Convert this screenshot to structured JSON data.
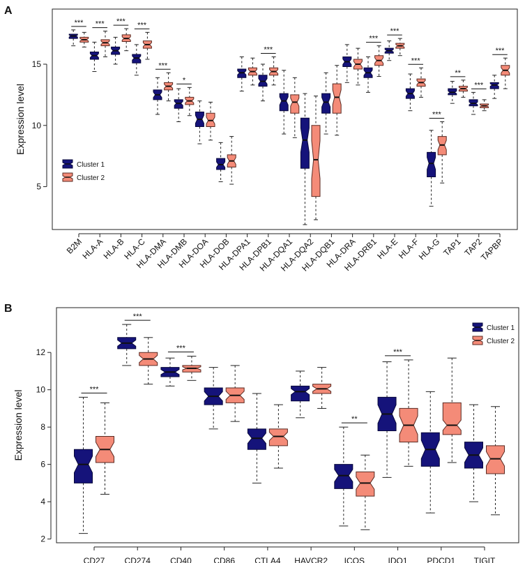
{
  "figure": {
    "panel_a_label": "A",
    "panel_b_label": "B"
  },
  "colors": {
    "cluster1_fill": "#15137a",
    "cluster1_stroke": "#08083a",
    "cluster2_fill": "#f48b78",
    "cluster2_stroke": "#5a2a22",
    "sig_line": "#111111"
  },
  "chart_data": [
    {
      "type": "boxplot",
      "panel": "A",
      "title": "",
      "ylabel": "Expression level",
      "xlabel": "",
      "ylim": [
        1.5,
        19.5
      ],
      "yticks": [
        5,
        10,
        15
      ],
      "legend": {
        "position": "left-middle",
        "entries": [
          "Cluster 1",
          "Cluster 2"
        ]
      },
      "categories": [
        "B2M",
        "HLA-A",
        "HLA-B",
        "HLA-C",
        "HLA-DMA",
        "HLA-DMB",
        "HLA-DOA",
        "HLA-DOB",
        "HLA-DPA1",
        "HLA-DPB1",
        "HLA-DQA1",
        "HLA-DQA2",
        "HLA-DQB1",
        "HLA-DRA",
        "HLA-DRB1",
        "HLA-E",
        "HLA-F",
        "HLA-G",
        "TAP1",
        "TAP2",
        "TAPBP"
      ],
      "series": [
        {
          "name": "Cluster 1",
          "boxes": [
            {
              "whisker_low": 16.5,
              "q1": 17.1,
              "median": 17.3,
              "q3": 17.45,
              "whisker_high": 17.8
            },
            {
              "whisker_low": 14.4,
              "q1": 15.4,
              "median": 15.7,
              "q3": 16.0,
              "whisker_high": 16.8
            },
            {
              "whisker_low": 15.0,
              "q1": 15.8,
              "median": 16.1,
              "q3": 16.4,
              "whisker_high": 17.2
            },
            {
              "whisker_low": 14.1,
              "q1": 15.1,
              "median": 15.5,
              "q3": 15.8,
              "whisker_high": 16.6
            },
            {
              "whisker_low": 10.9,
              "q1": 12.1,
              "median": 12.5,
              "q3": 12.9,
              "whisker_high": 13.9
            },
            {
              "whisker_low": 10.3,
              "q1": 11.4,
              "median": 11.8,
              "q3": 12.1,
              "whisker_high": 13.0
            },
            {
              "whisker_low": 8.5,
              "q1": 9.9,
              "median": 10.5,
              "q3": 11.1,
              "whisker_high": 12.0
            },
            {
              "whisker_low": 5.4,
              "q1": 6.4,
              "median": 6.8,
              "q3": 7.3,
              "whisker_high": 8.6
            },
            {
              "whisker_low": 12.8,
              "q1": 13.9,
              "median": 14.3,
              "q3": 14.6,
              "whisker_high": 15.6
            },
            {
              "whisker_low": 12.0,
              "q1": 13.2,
              "median": 13.6,
              "q3": 14.1,
              "whisker_high": 15.0
            },
            {
              "whisker_low": 9.3,
              "q1": 11.2,
              "median": 12.0,
              "q3": 12.6,
              "whisker_high": 14.5
            },
            {
              "whisker_low": 1.9,
              "q1": 6.5,
              "median": 8.8,
              "q3": 10.6,
              "whisker_high": 12.6
            },
            {
              "whisker_low": 9.3,
              "q1": 11.0,
              "median": 11.9,
              "q3": 12.6,
              "whisker_high": 14.3
            },
            {
              "whisker_low": 13.5,
              "q1": 14.8,
              "median": 15.2,
              "q3": 15.6,
              "whisker_high": 16.6
            },
            {
              "whisker_low": 12.7,
              "q1": 13.9,
              "median": 14.3,
              "q3": 14.7,
              "whisker_high": 15.6
            },
            {
              "whisker_low": 15.3,
              "q1": 15.9,
              "median": 16.1,
              "q3": 16.3,
              "whisker_high": 16.9
            },
            {
              "whisker_low": 11.2,
              "q1": 12.2,
              "median": 12.6,
              "q3": 13.0,
              "whisker_high": 14.2
            },
            {
              "whisker_low": 3.4,
              "q1": 5.8,
              "median": 6.9,
              "q3": 7.8,
              "whisker_high": 9.6
            },
            {
              "whisker_low": 11.8,
              "q1": 12.5,
              "median": 12.7,
              "q3": 13.0,
              "whisker_high": 13.6
            },
            {
              "whisker_low": 10.9,
              "q1": 11.6,
              "median": 11.8,
              "q3": 12.1,
              "whisker_high": 12.7
            },
            {
              "whisker_low": 12.2,
              "q1": 13.0,
              "median": 13.3,
              "q3": 13.5,
              "whisker_high": 14.1
            }
          ]
        },
        {
          "name": "Cluster 2",
          "boxes": [
            {
              "whisker_low": 16.4,
              "q1": 16.8,
              "median": 17.0,
              "q3": 17.2,
              "whisker_high": 17.6
            },
            {
              "whisker_low": 15.6,
              "q1": 16.5,
              "median": 16.75,
              "q3": 17.0,
              "whisker_high": 17.7
            },
            {
              "whisker_low": 16.1,
              "q1": 16.85,
              "median": 17.1,
              "q3": 17.4,
              "whisker_high": 17.9
            },
            {
              "whisker_low": 15.4,
              "q1": 16.3,
              "median": 16.6,
              "q3": 16.9,
              "whisker_high": 17.6
            },
            {
              "whisker_low": 12.0,
              "q1": 12.9,
              "median": 13.2,
              "q3": 13.5,
              "whisker_high": 14.3
            },
            {
              "whisker_low": 10.8,
              "q1": 11.7,
              "median": 12.0,
              "q3": 12.3,
              "whisker_high": 13.1
            },
            {
              "whisker_low": 8.8,
              "q1": 9.9,
              "median": 10.4,
              "q3": 11.0,
              "whisker_high": 11.9
            },
            {
              "whisker_low": 5.2,
              "q1": 6.6,
              "median": 7.1,
              "q3": 7.6,
              "whisker_high": 9.1
            },
            {
              "whisker_low": 13.3,
              "q1": 14.1,
              "median": 14.4,
              "q3": 14.7,
              "whisker_high": 15.5
            },
            {
              "whisker_low": 13.3,
              "q1": 14.1,
              "median": 14.4,
              "q3": 14.7,
              "whisker_high": 15.6
            },
            {
              "whisker_low": 9.0,
              "q1": 11.0,
              "median": 11.9,
              "q3": 12.5,
              "whisker_high": 13.9
            },
            {
              "whisker_low": 2.3,
              "q1": 4.2,
              "median": 7.2,
              "q3": 10.0,
              "whisker_high": 12.4
            },
            {
              "whisker_low": 9.2,
              "q1": 11.0,
              "median": 12.3,
              "q3": 13.4,
              "whisker_high": 14.9
            },
            {
              "whisker_low": 13.3,
              "q1": 14.6,
              "median": 15.0,
              "q3": 15.4,
              "whisker_high": 16.3
            },
            {
              "whisker_low": 14.0,
              "q1": 14.9,
              "median": 15.3,
              "q3": 15.7,
              "whisker_high": 16.5
            },
            {
              "whisker_low": 15.7,
              "q1": 16.3,
              "median": 16.5,
              "q3": 16.7,
              "whisker_high": 17.1
            },
            {
              "whisker_low": 12.3,
              "q1": 13.2,
              "median": 13.5,
              "q3": 13.8,
              "whisker_high": 14.7
            },
            {
              "whisker_low": 5.3,
              "q1": 7.6,
              "median": 8.4,
              "q3": 9.1,
              "whisker_high": 10.3
            },
            {
              "whisker_low": 12.3,
              "q1": 12.8,
              "median": 13.0,
              "q3": 13.2,
              "whisker_high": 13.7
            },
            {
              "whisker_low": 11.2,
              "q1": 11.45,
              "median": 11.6,
              "q3": 11.75,
              "whisker_high": 12.1
            },
            {
              "whisker_low": 13.0,
              "q1": 14.1,
              "median": 14.5,
              "q3": 14.9,
              "whisker_high": 15.5
            }
          ]
        }
      ],
      "significance": [
        {
          "category": "B2M",
          "label": "***"
        },
        {
          "category": "HLA-A",
          "label": "***"
        },
        {
          "category": "HLA-B",
          "label": "***"
        },
        {
          "category": "HLA-C",
          "label": "***"
        },
        {
          "category": "HLA-DMA",
          "label": "***"
        },
        {
          "category": "HLA-DMB",
          "label": "*"
        },
        {
          "category": "HLA-DPB1",
          "label": "***"
        },
        {
          "category": "HLA-DRB1",
          "label": "***"
        },
        {
          "category": "HLA-E",
          "label": "***"
        },
        {
          "category": "HLA-F",
          "label": "***"
        },
        {
          "category": "HLA-G",
          "label": "***"
        },
        {
          "category": "TAP1",
          "label": "**"
        },
        {
          "category": "TAP2",
          "label": "***"
        },
        {
          "category": "TAPBP",
          "label": "***"
        }
      ]
    },
    {
      "type": "boxplot",
      "panel": "B",
      "title": "",
      "ylabel": "Expression level",
      "xlabel": "",
      "ylim": [
        1.8,
        14.4
      ],
      "yticks": [
        2,
        4,
        6,
        8,
        10,
        12
      ],
      "legend": {
        "position": "top-right",
        "entries": [
          "Cluster 1",
          "Cluster 2"
        ]
      },
      "categories": [
        "CD27",
        "CD274",
        "CD40",
        "CD86",
        "CTLA4",
        "HAVCR2",
        "ICOS",
        "IDO1",
        "PDCD1",
        "TIGIT"
      ],
      "series": [
        {
          "name": "Cluster 1",
          "boxes": [
            {
              "whisker_low": 2.3,
              "q1": 5.0,
              "median": 6.0,
              "q3": 6.8,
              "whisker_high": 9.6
            },
            {
              "whisker_low": 11.3,
              "q1": 12.2,
              "median": 12.5,
              "q3": 12.8,
              "whisker_high": 13.5
            },
            {
              "whisker_low": 10.2,
              "q1": 10.7,
              "median": 10.95,
              "q3": 11.2,
              "whisker_high": 11.7
            },
            {
              "whisker_low": 7.9,
              "q1": 9.2,
              "median": 9.65,
              "q3": 10.1,
              "whisker_high": 11.2
            },
            {
              "whisker_low": 5.0,
              "q1": 6.8,
              "median": 7.4,
              "q3": 7.9,
              "whisker_high": 9.8
            },
            {
              "whisker_low": 8.5,
              "q1": 9.4,
              "median": 9.9,
              "q3": 10.2,
              "whisker_high": 11.0
            },
            {
              "whisker_low": 2.7,
              "q1": 4.7,
              "median": 5.4,
              "q3": 6.0,
              "whisker_high": 8.0
            },
            {
              "whisker_low": 5.3,
              "q1": 7.8,
              "median": 8.7,
              "q3": 9.6,
              "whisker_high": 11.5
            },
            {
              "whisker_low": 3.4,
              "q1": 5.9,
              "median": 6.8,
              "q3": 7.7,
              "whisker_high": 9.9
            },
            {
              "whisker_low": 4.0,
              "q1": 5.8,
              "median": 6.5,
              "q3": 7.2,
              "whisker_high": 9.2
            }
          ]
        },
        {
          "name": "Cluster 2",
          "boxes": [
            {
              "whisker_low": 4.4,
              "q1": 6.1,
              "median": 6.8,
              "q3": 7.5,
              "whisker_high": 9.3
            },
            {
              "whisker_low": 10.3,
              "q1": 11.3,
              "median": 11.65,
              "q3": 12.0,
              "whisker_high": 12.8
            },
            {
              "whisker_low": 10.5,
              "q1": 10.95,
              "median": 11.15,
              "q3": 11.3,
              "whisker_high": 11.8
            },
            {
              "whisker_low": 8.3,
              "q1": 9.3,
              "median": 9.7,
              "q3": 10.1,
              "whisker_high": 11.3
            },
            {
              "whisker_low": 5.8,
              "q1": 7.0,
              "median": 7.5,
              "q3": 7.9,
              "whisker_high": 9.2
            },
            {
              "whisker_low": 9.0,
              "q1": 9.8,
              "median": 10.05,
              "q3": 10.3,
              "whisker_high": 11.2
            },
            {
              "whisker_low": 2.5,
              "q1": 4.3,
              "median": 5.0,
              "q3": 5.6,
              "whisker_high": 6.5
            },
            {
              "whisker_low": 5.9,
              "q1": 7.2,
              "median": 8.1,
              "q3": 9.0,
              "whisker_high": 11.6
            },
            {
              "whisker_low": 6.1,
              "q1": 7.6,
              "median": 8.1,
              "q3": 9.3,
              "whisker_high": 11.7
            },
            {
              "whisker_low": 3.3,
              "q1": 5.5,
              "median": 6.3,
              "q3": 7.0,
              "whisker_high": 9.1
            }
          ]
        }
      ],
      "significance": [
        {
          "category": "CD27",
          "label": "***"
        },
        {
          "category": "CD274",
          "label": "***"
        },
        {
          "category": "CD40",
          "label": "***"
        },
        {
          "category": "ICOS",
          "label": "**"
        },
        {
          "category": "IDO1",
          "label": "***"
        }
      ]
    }
  ]
}
